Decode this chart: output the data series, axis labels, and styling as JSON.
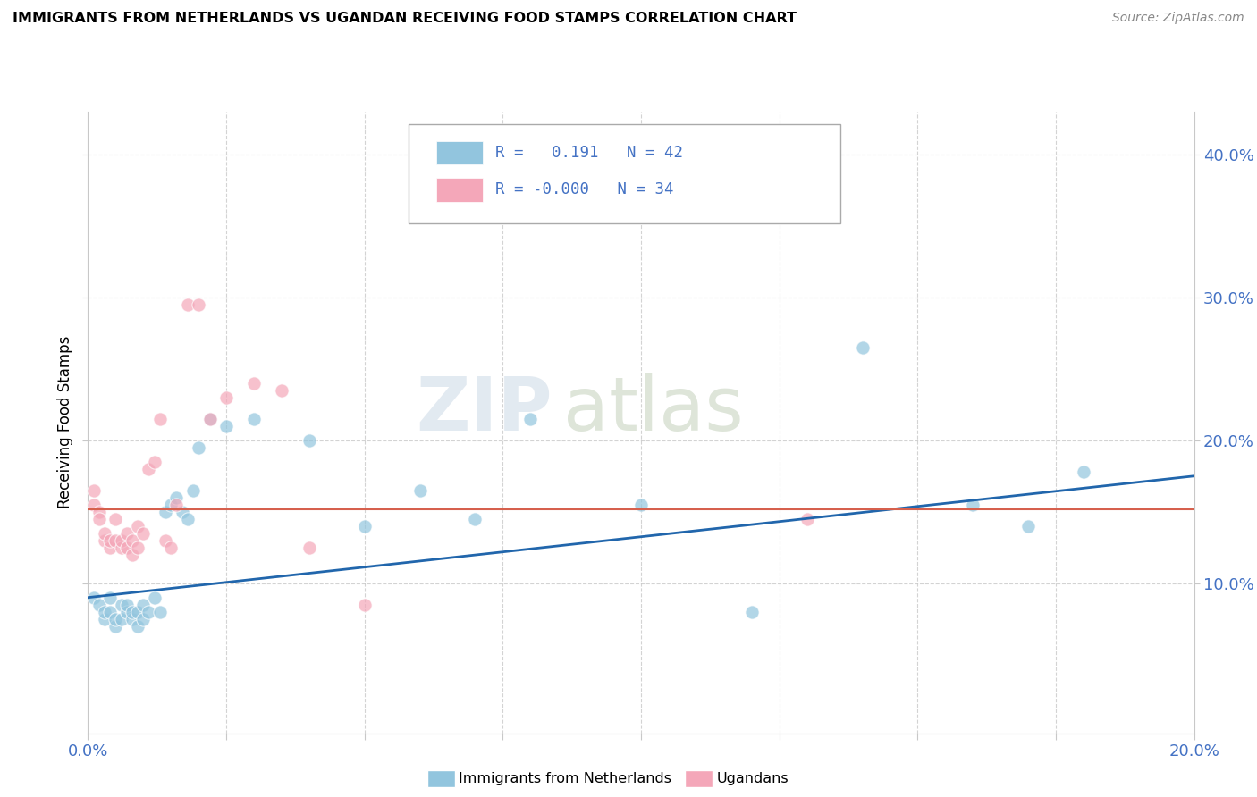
{
  "title": "IMMIGRANTS FROM NETHERLANDS VS UGANDAN RECEIVING FOOD STAMPS CORRELATION CHART",
  "source": "Source: ZipAtlas.com",
  "ylabel": "Receiving Food Stamps",
  "ytick_vals": [
    0.1,
    0.2,
    0.3,
    0.4
  ],
  "xlim": [
    0.0,
    0.2
  ],
  "ylim": [
    -0.005,
    0.43
  ],
  "legend_blue_label": "Immigrants from Netherlands",
  "legend_pink_label": "Ugandans",
  "blue_R": "0.191",
  "blue_N": "42",
  "pink_R": "-0.000",
  "pink_N": "34",
  "blue_color": "#92c5de",
  "pink_color": "#f4a7b9",
  "blue_line_color": "#2166ac",
  "pink_line_color": "#d6604d",
  "watermark_zip": "ZIP",
  "watermark_atlas": "atlas",
  "blue_scatter_x": [
    0.001,
    0.002,
    0.003,
    0.003,
    0.004,
    0.004,
    0.005,
    0.005,
    0.006,
    0.006,
    0.007,
    0.007,
    0.008,
    0.008,
    0.009,
    0.009,
    0.01,
    0.01,
    0.011,
    0.012,
    0.013,
    0.014,
    0.015,
    0.016,
    0.017,
    0.018,
    0.019,
    0.02,
    0.022,
    0.025,
    0.03,
    0.04,
    0.05,
    0.06,
    0.07,
    0.08,
    0.1,
    0.12,
    0.14,
    0.16,
    0.17,
    0.18
  ],
  "blue_scatter_y": [
    0.09,
    0.085,
    0.075,
    0.08,
    0.08,
    0.09,
    0.07,
    0.075,
    0.075,
    0.085,
    0.08,
    0.085,
    0.075,
    0.08,
    0.07,
    0.08,
    0.075,
    0.085,
    0.08,
    0.09,
    0.08,
    0.15,
    0.155,
    0.16,
    0.15,
    0.145,
    0.165,
    0.195,
    0.215,
    0.21,
    0.215,
    0.2,
    0.14,
    0.165,
    0.145,
    0.215,
    0.155,
    0.08,
    0.265,
    0.155,
    0.14,
    0.178
  ],
  "pink_scatter_x": [
    0.001,
    0.001,
    0.002,
    0.002,
    0.003,
    0.003,
    0.004,
    0.004,
    0.005,
    0.005,
    0.006,
    0.006,
    0.007,
    0.007,
    0.008,
    0.008,
    0.009,
    0.009,
    0.01,
    0.011,
    0.012,
    0.013,
    0.014,
    0.015,
    0.016,
    0.018,
    0.02,
    0.022,
    0.025,
    0.03,
    0.035,
    0.04,
    0.05,
    0.13
  ],
  "pink_scatter_y": [
    0.155,
    0.165,
    0.15,
    0.145,
    0.13,
    0.135,
    0.125,
    0.13,
    0.13,
    0.145,
    0.125,
    0.13,
    0.125,
    0.135,
    0.12,
    0.13,
    0.125,
    0.14,
    0.135,
    0.18,
    0.185,
    0.215,
    0.13,
    0.125,
    0.155,
    0.295,
    0.295,
    0.215,
    0.23,
    0.24,
    0.235,
    0.125,
    0.085,
    0.145
  ],
  "blue_line_x": [
    0.0,
    0.2
  ],
  "blue_line_y": [
    0.09,
    0.175
  ],
  "pink_line_x": [
    0.0,
    0.2
  ],
  "pink_line_y": [
    0.152,
    0.152
  ],
  "grid_color": "#c8c8c8",
  "tick_color": "#4472c4",
  "background_color": "#ffffff"
}
